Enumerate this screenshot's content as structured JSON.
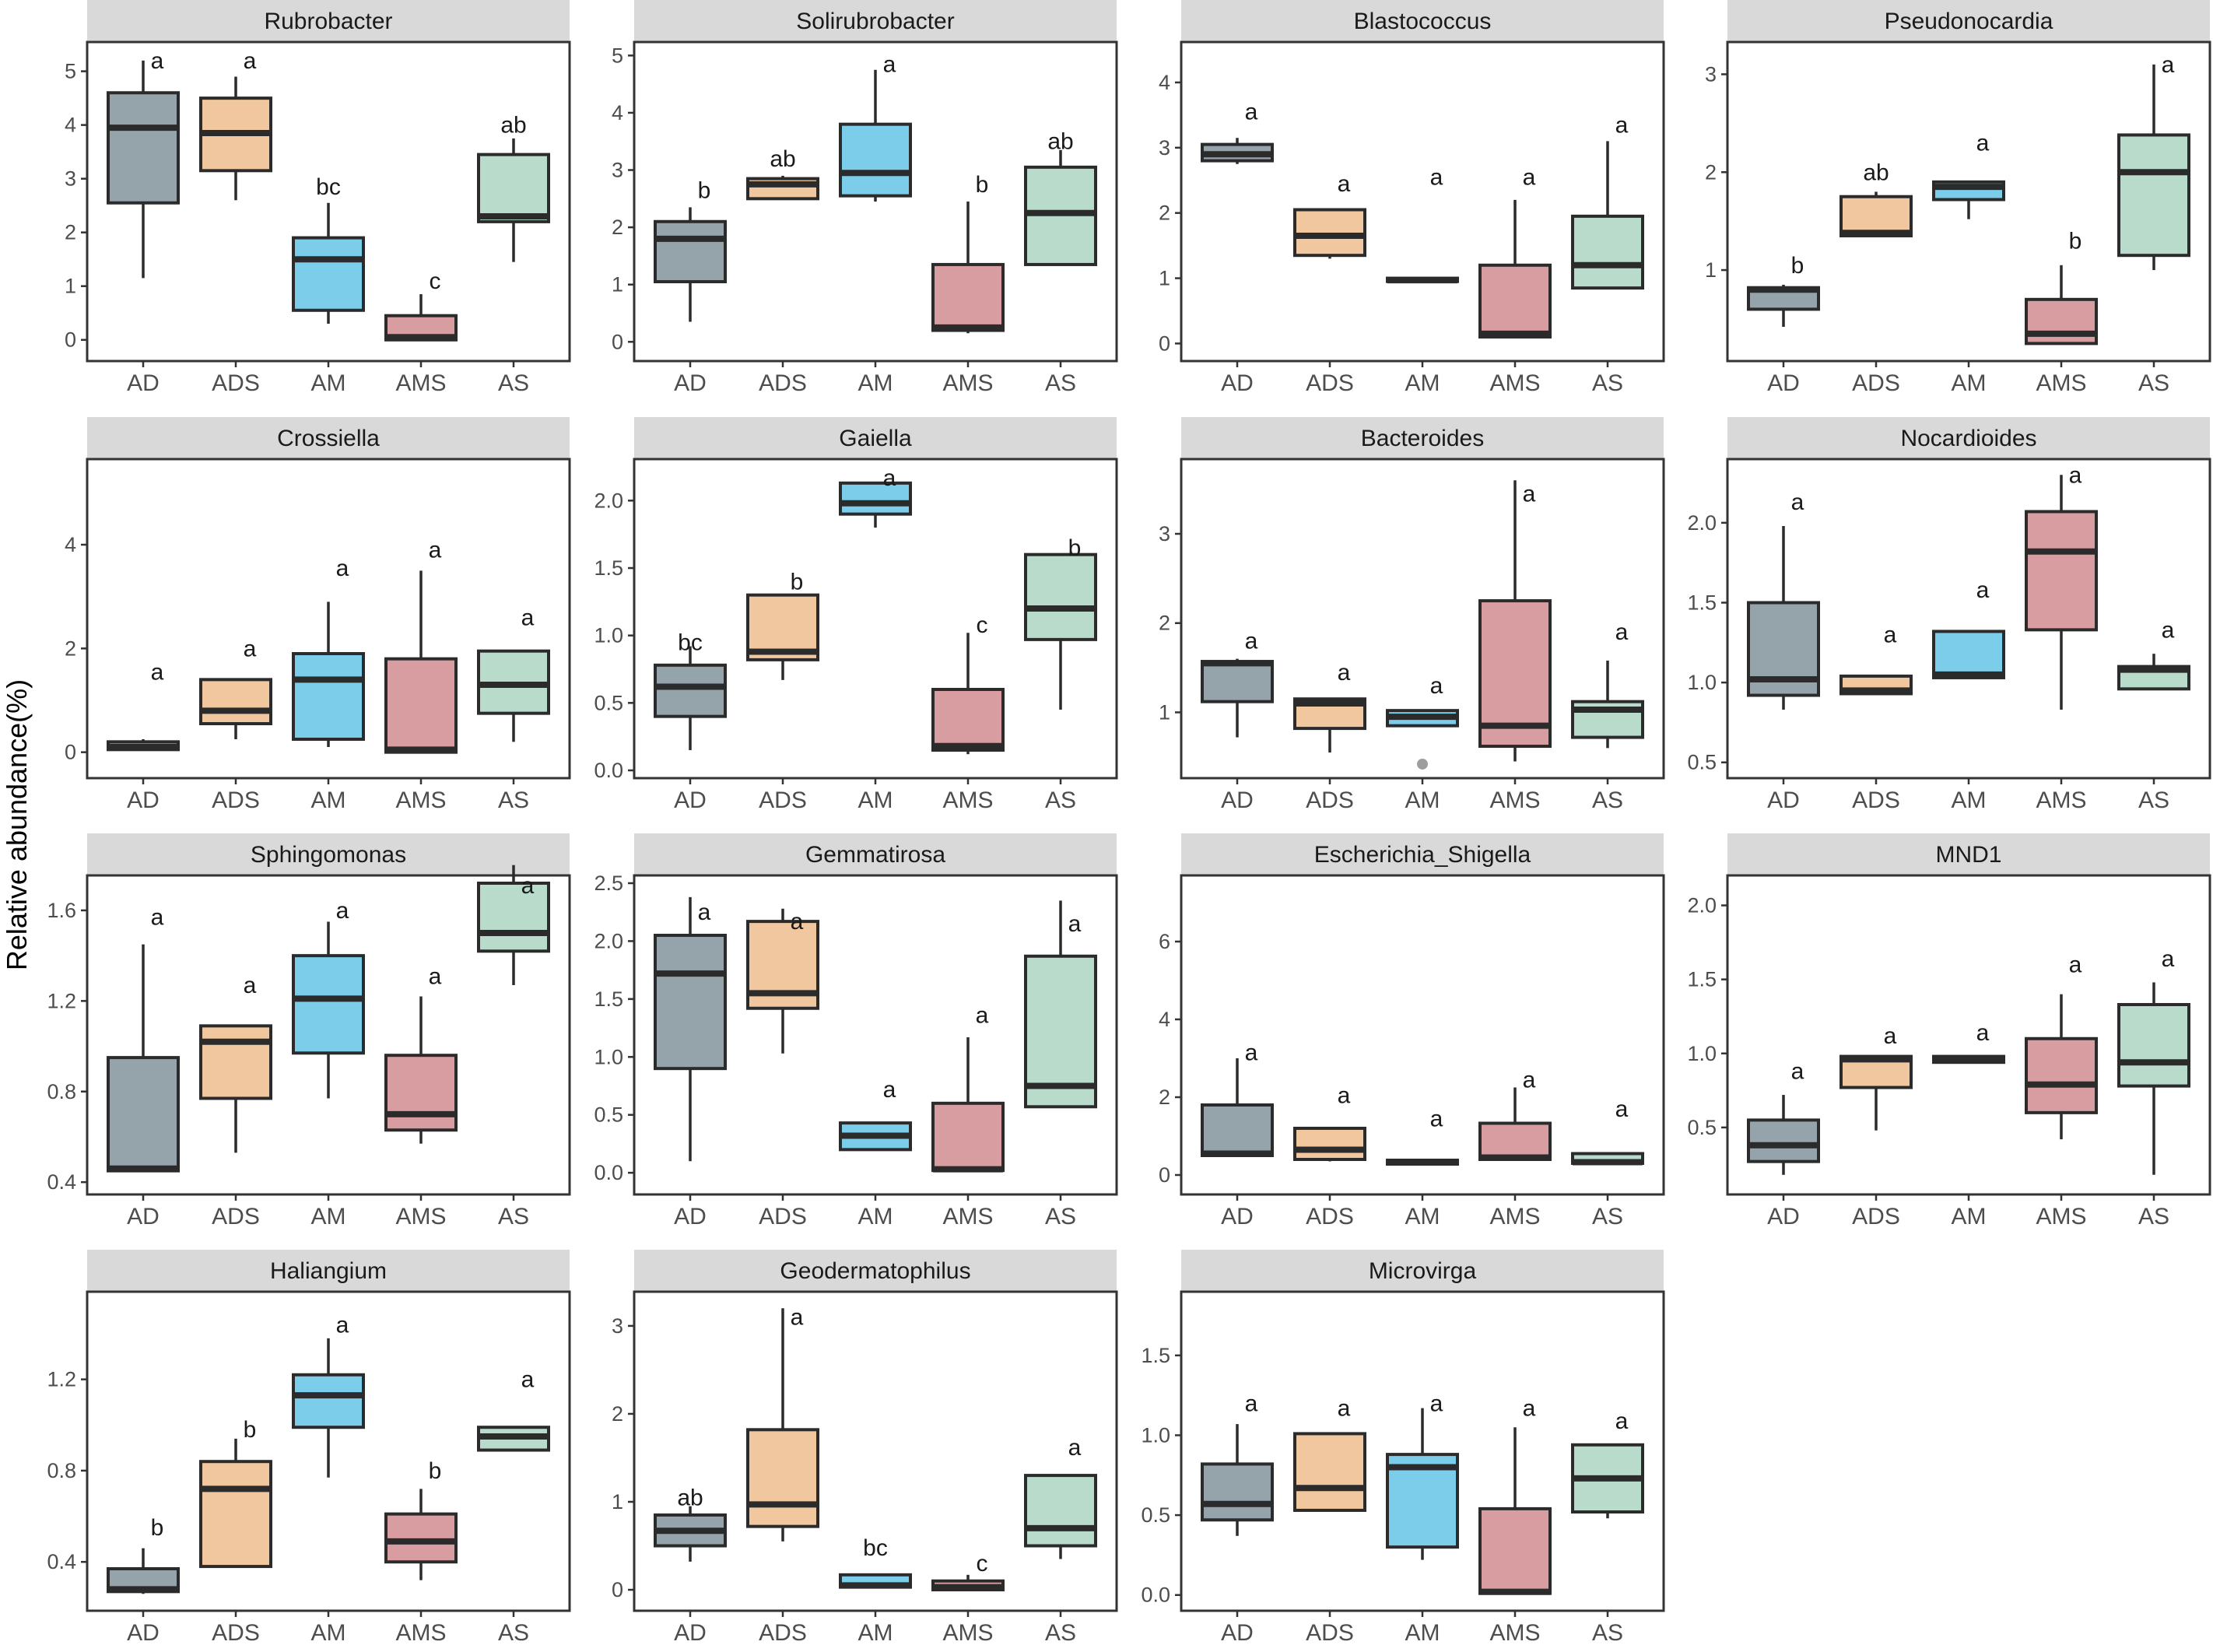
{
  "ylabel": "Relative abundance(%)",
  "categories": [
    "AD",
    "ADS",
    "AM",
    "AMS",
    "AS"
  ],
  "colors": [
    "#95a3ab",
    "#f0c79e",
    "#7ccde9",
    "#d89da0",
    "#b8dbcb"
  ],
  "chart_data": [
    {
      "type": "box",
      "title": "Rubrobacter",
      "ylim": [
        -0.25,
        5.4
      ],
      "ticks": [
        0,
        1,
        2,
        3,
        4,
        5
      ],
      "boxes": [
        {
          "cat": "AD",
          "low": 1.15,
          "q1": 2.55,
          "median": 3.95,
          "q3": 4.6,
          "high": 5.2,
          "sig": "a",
          "sig_y": 5.2
        },
        {
          "cat": "ADS",
          "low": 2.6,
          "q1": 3.15,
          "median": 3.85,
          "q3": 4.5,
          "high": 4.9,
          "sig": "a",
          "sig_y": 5.2
        },
        {
          "cat": "AM",
          "low": 0.3,
          "q1": 0.55,
          "median": 1.5,
          "q3": 1.9,
          "high": 2.55,
          "sig": "bc",
          "sig_y": 2.85
        },
        {
          "cat": "AMS",
          "low": 0.0,
          "q1": 0.0,
          "median": 0.05,
          "q3": 0.45,
          "high": 0.85,
          "sig": "c",
          "sig_y": 1.1
        },
        {
          "cat": "AS",
          "low": 1.45,
          "q1": 2.2,
          "median": 2.3,
          "q3": 3.45,
          "high": 3.75,
          "sig": "ab",
          "sig_y": 4.0
        }
      ]
    },
    {
      "type": "box",
      "title": "Solirubrobacter",
      "ylim": [
        -0.2,
        5.1
      ],
      "ticks": [
        0,
        1,
        2,
        3,
        4,
        5
      ],
      "boxes": [
        {
          "cat": "AD",
          "low": 0.35,
          "q1": 1.05,
          "median": 1.8,
          "q3": 2.1,
          "high": 2.35,
          "sig": "b",
          "sig_y": 2.65
        },
        {
          "cat": "ADS",
          "low": 2.5,
          "q1": 2.5,
          "median": 2.75,
          "q3": 2.85,
          "high": 2.9,
          "sig": "ab",
          "sig_y": 3.2
        },
        {
          "cat": "AM",
          "low": 2.45,
          "q1": 2.55,
          "median": 2.95,
          "q3": 3.8,
          "high": 4.75,
          "sig": "a",
          "sig_y": 4.85
        },
        {
          "cat": "AMS",
          "low": 0.15,
          "q1": 0.2,
          "median": 0.25,
          "q3": 1.35,
          "high": 2.45,
          "sig": "b",
          "sig_y": 2.75
        },
        {
          "cat": "AS",
          "low": 1.35,
          "q1": 1.35,
          "median": 2.25,
          "q3": 3.05,
          "high": 3.35,
          "sig": "ab",
          "sig_y": 3.5
        }
      ]
    },
    {
      "type": "box",
      "title": "Blastococcus",
      "ylim": [
        -0.15,
        4.5
      ],
      "ticks": [
        0,
        1,
        2,
        3,
        4
      ],
      "boxes": [
        {
          "cat": "AD",
          "low": 2.75,
          "q1": 2.8,
          "median": 2.9,
          "q3": 3.05,
          "high": 3.15,
          "sig": "a",
          "sig_y": 3.55
        },
        {
          "cat": "ADS",
          "low": 1.3,
          "q1": 1.35,
          "median": 1.65,
          "q3": 2.05,
          "high": 2.05,
          "sig": "a",
          "sig_y": 2.45
        },
        {
          "cat": "AM",
          "low": 0.95,
          "q1": 0.95,
          "median": 0.97,
          "q3": 1.0,
          "high": 1.0,
          "sig": "a",
          "sig_y": 2.55
        },
        {
          "cat": "AMS",
          "low": 0.1,
          "q1": 0.1,
          "median": 0.15,
          "q3": 1.2,
          "high": 2.2,
          "sig": "a",
          "sig_y": 2.55
        },
        {
          "cat": "AS",
          "low": 0.85,
          "q1": 0.85,
          "median": 1.2,
          "q3": 1.95,
          "high": 3.1,
          "sig": "a",
          "sig_y": 3.35
        }
      ]
    },
    {
      "type": "box",
      "title": "Pseudonocardia",
      "ylim": [
        0.15,
        3.25
      ],
      "ticks": [
        1,
        2,
        3
      ],
      "boxes": [
        {
          "cat": "AD",
          "low": 0.42,
          "q1": 0.6,
          "median": 0.8,
          "q3": 0.82,
          "high": 0.85,
          "sig": "b",
          "sig_y": 1.05
        },
        {
          "cat": "ADS",
          "low": 1.35,
          "q1": 1.35,
          "median": 1.38,
          "q3": 1.75,
          "high": 1.8,
          "sig": "ab",
          "sig_y": 2.0
        },
        {
          "cat": "AM",
          "low": 1.52,
          "q1": 1.72,
          "median": 1.85,
          "q3": 1.9,
          "high": 1.9,
          "sig": "a",
          "sig_y": 2.3
        },
        {
          "cat": "AMS",
          "low": 0.25,
          "q1": 0.25,
          "median": 0.35,
          "q3": 0.7,
          "high": 1.05,
          "sig": "b",
          "sig_y": 1.3
        },
        {
          "cat": "AS",
          "low": 1.0,
          "q1": 1.15,
          "median": 2.0,
          "q3": 2.38,
          "high": 3.1,
          "sig": "a",
          "sig_y": 3.1
        }
      ]
    },
    {
      "type": "box",
      "title": "Crossiella",
      "ylim": [
        -0.35,
        5.5
      ],
      "ticks": [
        0,
        2,
        4
      ],
      "boxes": [
        {
          "cat": "AD",
          "low": 0.05,
          "q1": 0.05,
          "median": 0.1,
          "q3": 0.2,
          "high": 0.25,
          "sig": "a",
          "sig_y": 1.55
        },
        {
          "cat": "ADS",
          "low": 0.25,
          "q1": 0.55,
          "median": 0.8,
          "q3": 1.4,
          "high": 1.4,
          "sig": "a",
          "sig_y": 2.0
        },
        {
          "cat": "AM",
          "low": 0.1,
          "q1": 0.25,
          "median": 1.4,
          "q3": 1.9,
          "high": 2.9,
          "sig": "a",
          "sig_y": 3.55
        },
        {
          "cat": "AMS",
          "low": 0.0,
          "q1": 0.0,
          "median": 0.05,
          "q3": 1.8,
          "high": 3.5,
          "sig": "a",
          "sig_y": 3.9
        },
        {
          "cat": "AS",
          "low": 0.2,
          "q1": 0.75,
          "median": 1.3,
          "q3": 1.95,
          "high": 1.95,
          "sig": "a",
          "sig_y": 2.6
        }
      ]
    },
    {
      "type": "box",
      "title": "Gaiella",
      "ylim": [
        0.0,
        2.25
      ],
      "ticks": [
        0.0,
        0.5,
        1.0,
        1.5,
        2.0
      ],
      "boxes": [
        {
          "cat": "AD",
          "low": 0.15,
          "q1": 0.4,
          "median": 0.62,
          "q3": 0.78,
          "high": 0.92,
          "sig": "bc",
          "sig_y": 0.95
        },
        {
          "cat": "ADS",
          "low": 0.67,
          "q1": 0.82,
          "median": 0.88,
          "q3": 1.3,
          "high": 1.3,
          "sig": "b",
          "sig_y": 1.4
        },
        {
          "cat": "AM",
          "low": 1.8,
          "q1": 1.9,
          "median": 1.98,
          "q3": 2.13,
          "high": 2.13,
          "sig": "a",
          "sig_y": 2.17
        },
        {
          "cat": "AMS",
          "low": 0.12,
          "q1": 0.15,
          "median": 0.18,
          "q3": 0.6,
          "high": 1.02,
          "sig": "c",
          "sig_y": 1.08
        },
        {
          "cat": "AS",
          "low": 0.45,
          "q1": 0.97,
          "median": 1.2,
          "q3": 1.6,
          "high": 1.6,
          "sig": "b",
          "sig_y": 1.65
        }
      ]
    },
    {
      "type": "box",
      "title": "Bacteroides",
      "ylim": [
        0.35,
        3.75
      ],
      "ticks": [
        1,
        2,
        3
      ],
      "boxes": [
        {
          "cat": "AD",
          "low": 0.72,
          "q1": 1.12,
          "median": 1.55,
          "q3": 1.57,
          "high": 1.6,
          "sig": "a",
          "sig_y": 1.8
        },
        {
          "cat": "ADS",
          "low": 0.55,
          "q1": 0.82,
          "median": 1.1,
          "q3": 1.15,
          "high": 1.15,
          "sig": "a",
          "sig_y": 1.45
        },
        {
          "cat": "AM",
          "low": 0.85,
          "q1": 0.85,
          "median": 0.95,
          "q3": 1.02,
          "high": 1.02,
          "sig": "a",
          "sig_y": 1.3,
          "outlier": 0.42
        },
        {
          "cat": "AMS",
          "low": 0.45,
          "q1": 0.62,
          "median": 0.85,
          "q3": 2.25,
          "high": 3.6,
          "sig": "a",
          "sig_y": 3.45
        },
        {
          "cat": "AS",
          "low": 0.6,
          "q1": 0.72,
          "median": 1.03,
          "q3": 1.12,
          "high": 1.58,
          "sig": "a",
          "sig_y": 1.9
        }
      ]
    },
    {
      "type": "box",
      "title": "Nocardioides",
      "ylim": [
        0.45,
        2.35
      ],
      "ticks": [
        0.5,
        1.0,
        1.5,
        2.0
      ],
      "boxes": [
        {
          "cat": "AD",
          "low": 0.83,
          "q1": 0.92,
          "median": 1.02,
          "q3": 1.5,
          "high": 1.98,
          "sig": "a",
          "sig_y": 2.13
        },
        {
          "cat": "ADS",
          "low": 0.93,
          "q1": 0.93,
          "median": 0.95,
          "q3": 1.04,
          "high": 1.04,
          "sig": "a",
          "sig_y": 1.3
        },
        {
          "cat": "AM",
          "low": 1.03,
          "q1": 1.03,
          "median": 1.05,
          "q3": 1.32,
          "high": 1.32,
          "sig": "a",
          "sig_y": 1.58
        },
        {
          "cat": "AMS",
          "low": 0.83,
          "q1": 1.33,
          "median": 1.82,
          "q3": 2.07,
          "high": 2.3,
          "sig": "a",
          "sig_y": 2.3
        },
        {
          "cat": "AS",
          "low": 0.96,
          "q1": 0.96,
          "median": 1.08,
          "q3": 1.1,
          "high": 1.18,
          "sig": "a",
          "sig_y": 1.33
        }
      ]
    },
    {
      "type": "box",
      "title": "Sphingomonas",
      "ylim": [
        0.38,
        1.72
      ],
      "ticks": [
        0.4,
        0.8,
        1.2,
        1.6
      ],
      "boxes": [
        {
          "cat": "AD",
          "low": 0.45,
          "q1": 0.45,
          "median": 0.46,
          "q3": 0.95,
          "high": 1.45,
          "sig": "a",
          "sig_y": 1.57
        },
        {
          "cat": "ADS",
          "low": 0.53,
          "q1": 0.77,
          "median": 1.02,
          "q3": 1.09,
          "high": 1.09,
          "sig": "a",
          "sig_y": 1.27
        },
        {
          "cat": "AM",
          "low": 0.77,
          "q1": 0.97,
          "median": 1.21,
          "q3": 1.4,
          "high": 1.55,
          "sig": "a",
          "sig_y": 1.6
        },
        {
          "cat": "AMS",
          "low": 0.57,
          "q1": 0.63,
          "median": 0.7,
          "q3": 0.96,
          "high": 1.22,
          "sig": "a",
          "sig_y": 1.31
        },
        {
          "cat": "AS",
          "low": 1.27,
          "q1": 1.42,
          "median": 1.5,
          "q3": 1.72,
          "high": 1.8,
          "sig": "a",
          "sig_y": 1.71
        }
      ]
    },
    {
      "type": "box",
      "title": "Gemmatirosa",
      "ylim": [
        -0.12,
        2.5
      ],
      "ticks": [
        0.0,
        0.5,
        1.0,
        1.5,
        2.0,
        2.5
      ],
      "boxes": [
        {
          "cat": "AD",
          "low": 0.1,
          "q1": 0.9,
          "median": 1.72,
          "q3": 2.05,
          "high": 2.38,
          "sig": "a",
          "sig_y": 2.25
        },
        {
          "cat": "ADS",
          "low": 1.03,
          "q1": 1.42,
          "median": 1.55,
          "q3": 2.17,
          "high": 2.28,
          "sig": "a",
          "sig_y": 2.17
        },
        {
          "cat": "AM",
          "low": 0.2,
          "q1": 0.2,
          "median": 0.32,
          "q3": 0.43,
          "high": 0.43,
          "sig": "a",
          "sig_y": 0.72
        },
        {
          "cat": "AMS",
          "low": 0.02,
          "q1": 0.02,
          "median": 0.03,
          "q3": 0.6,
          "high": 1.17,
          "sig": "a",
          "sig_y": 1.36
        },
        {
          "cat": "AS",
          "low": 0.57,
          "q1": 0.57,
          "median": 0.75,
          "q3": 1.87,
          "high": 2.35,
          "sig": "a",
          "sig_y": 2.15
        }
      ]
    },
    {
      "type": "box",
      "title": "Escherichia_Shigella",
      "ylim": [
        -0.3,
        7.5
      ],
      "ticks": [
        0,
        2,
        4,
        6
      ],
      "boxes": [
        {
          "cat": "AD",
          "low": 0.5,
          "q1": 0.5,
          "median": 0.55,
          "q3": 1.8,
          "high": 3.0,
          "sig": "a",
          "sig_y": 3.15
        },
        {
          "cat": "ADS",
          "low": 0.35,
          "q1": 0.4,
          "median": 0.65,
          "q3": 1.2,
          "high": 1.2,
          "sig": "a",
          "sig_y": 2.05
        },
        {
          "cat": "AM",
          "low": 0.28,
          "q1": 0.28,
          "median": 0.33,
          "q3": 0.38,
          "high": 0.38,
          "sig": "a",
          "sig_y": 1.45
        },
        {
          "cat": "AMS",
          "low": 0.4,
          "q1": 0.4,
          "median": 0.45,
          "q3": 1.33,
          "high": 2.25,
          "sig": "a",
          "sig_y": 2.45
        },
        {
          "cat": "AS",
          "low": 0.3,
          "q1": 0.3,
          "median": 0.33,
          "q3": 0.55,
          "high": 0.55,
          "sig": "a",
          "sig_y": 1.7
        }
      ]
    },
    {
      "type": "box",
      "title": "MND1",
      "ylim": [
        0.1,
        2.15
      ],
      "ticks": [
        0.5,
        1.0,
        1.5,
        2.0
      ],
      "boxes": [
        {
          "cat": "AD",
          "low": 0.18,
          "q1": 0.27,
          "median": 0.38,
          "q3": 0.55,
          "high": 0.72,
          "sig": "a",
          "sig_y": 0.88
        },
        {
          "cat": "ADS",
          "low": 0.48,
          "q1": 0.77,
          "median": 0.96,
          "q3": 0.98,
          "high": 0.98,
          "sig": "a",
          "sig_y": 1.12
        },
        {
          "cat": "AM",
          "low": 0.94,
          "q1": 0.94,
          "median": 0.96,
          "q3": 0.98,
          "high": 0.98,
          "sig": "a",
          "sig_y": 1.14
        },
        {
          "cat": "AMS",
          "low": 0.42,
          "q1": 0.6,
          "median": 0.79,
          "q3": 1.1,
          "high": 1.4,
          "sig": "a",
          "sig_y": 1.6
        },
        {
          "cat": "AS",
          "low": 0.18,
          "q1": 0.78,
          "median": 0.94,
          "q3": 1.33,
          "high": 1.48,
          "sig": "a",
          "sig_y": 1.64
        }
      ]
    },
    {
      "type": "box",
      "title": "Haliangium",
      "ylim": [
        0.22,
        1.55
      ],
      "ticks": [
        0.4,
        0.8,
        1.2
      ],
      "boxes": [
        {
          "cat": "AD",
          "low": 0.26,
          "q1": 0.27,
          "median": 0.28,
          "q3": 0.37,
          "high": 0.46,
          "sig": "b",
          "sig_y": 0.55
        },
        {
          "cat": "ADS",
          "low": 0.38,
          "q1": 0.38,
          "median": 0.72,
          "q3": 0.84,
          "high": 0.94,
          "sig": "b",
          "sig_y": 0.98
        },
        {
          "cat": "AM",
          "low": 0.77,
          "q1": 0.99,
          "median": 1.13,
          "q3": 1.22,
          "high": 1.38,
          "sig": "a",
          "sig_y": 1.44
        },
        {
          "cat": "AMS",
          "low": 0.32,
          "q1": 0.4,
          "median": 0.49,
          "q3": 0.61,
          "high": 0.72,
          "sig": "b",
          "sig_y": 0.8
        },
        {
          "cat": "AS",
          "low": 0.89,
          "q1": 0.89,
          "median": 0.95,
          "q3": 0.99,
          "high": 0.99,
          "sig": "a",
          "sig_y": 1.2
        }
      ]
    },
    {
      "type": "box",
      "title": "Geodermatophilus",
      "ylim": [
        -0.15,
        3.3
      ],
      "ticks": [
        0,
        1,
        2,
        3
      ],
      "boxes": [
        {
          "cat": "AD",
          "low": 0.32,
          "q1": 0.5,
          "median": 0.67,
          "q3": 0.85,
          "high": 0.95,
          "sig": "ab",
          "sig_y": 1.05
        },
        {
          "cat": "ADS",
          "low": 0.55,
          "q1": 0.72,
          "median": 0.97,
          "q3": 1.82,
          "high": 3.2,
          "sig": "a",
          "sig_y": 3.1
        },
        {
          "cat": "AM",
          "low": 0.03,
          "q1": 0.03,
          "median": 0.05,
          "q3": 0.17,
          "high": 0.17,
          "sig": "bc",
          "sig_y": 0.48
        },
        {
          "cat": "AMS",
          "low": 0.0,
          "q1": 0.0,
          "median": 0.03,
          "q3": 0.1,
          "high": 0.17,
          "sig": "c",
          "sig_y": 0.3
        },
        {
          "cat": "AS",
          "low": 0.35,
          "q1": 0.5,
          "median": 0.7,
          "q3": 1.3,
          "high": 1.3,
          "sig": "a",
          "sig_y": 1.62
        }
      ]
    },
    {
      "type": "box",
      "title": "Microvirga",
      "ylim": [
        -0.05,
        1.85
      ],
      "ticks": [
        0.0,
        0.5,
        1.0,
        1.5
      ],
      "boxes": [
        {
          "cat": "AD",
          "low": 0.37,
          "q1": 0.47,
          "median": 0.57,
          "q3": 0.82,
          "high": 1.07,
          "sig": "a",
          "sig_y": 1.2
        },
        {
          "cat": "ADS",
          "low": 0.53,
          "q1": 0.53,
          "median": 0.67,
          "q3": 1.01,
          "high": 1.01,
          "sig": "a",
          "sig_y": 1.17
        },
        {
          "cat": "AM",
          "low": 0.22,
          "q1": 0.3,
          "median": 0.8,
          "q3": 0.88,
          "high": 1.17,
          "sig": "a",
          "sig_y": 1.2
        },
        {
          "cat": "AMS",
          "low": 0.01,
          "q1": 0.01,
          "median": 0.02,
          "q3": 0.54,
          "high": 1.05,
          "sig": "a",
          "sig_y": 1.17
        },
        {
          "cat": "AS",
          "low": 0.48,
          "q1": 0.52,
          "median": 0.73,
          "q3": 0.94,
          "high": 0.94,
          "sig": "a",
          "sig_y": 1.09
        }
      ]
    }
  ]
}
